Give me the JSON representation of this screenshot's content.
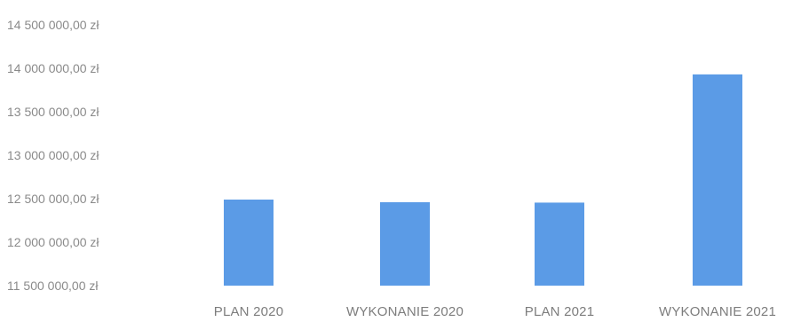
{
  "chart_data": {
    "type": "bar",
    "categories": [
      "PLAN 2020",
      "WYKONANIE 2020",
      "PLAN 2021",
      "WYKONANIE 2021"
    ],
    "values": [
      12490000,
      12460000,
      12455000,
      13930000
    ],
    "y_ticks": [
      {
        "value": 14500000,
        "label": "14 500 000,00 zł"
      },
      {
        "value": 14000000,
        "label": "14 000 000,00 zł"
      },
      {
        "value": 13500000,
        "label": "13 500 000,00 zł"
      },
      {
        "value": 13000000,
        "label": "13 000 000,00 zł"
      },
      {
        "value": 12500000,
        "label": "12 500 000,00 zł"
      },
      {
        "value": 12000000,
        "label": "12 000 000,00 zł"
      },
      {
        "value": 11500000,
        "label": "11 500 000,00 zł"
      }
    ],
    "ylim": [
      11500000,
      14500000
    ],
    "title": "",
    "xlabel": "",
    "ylabel": "",
    "grid": false,
    "bar_color": "#5b9be6"
  }
}
